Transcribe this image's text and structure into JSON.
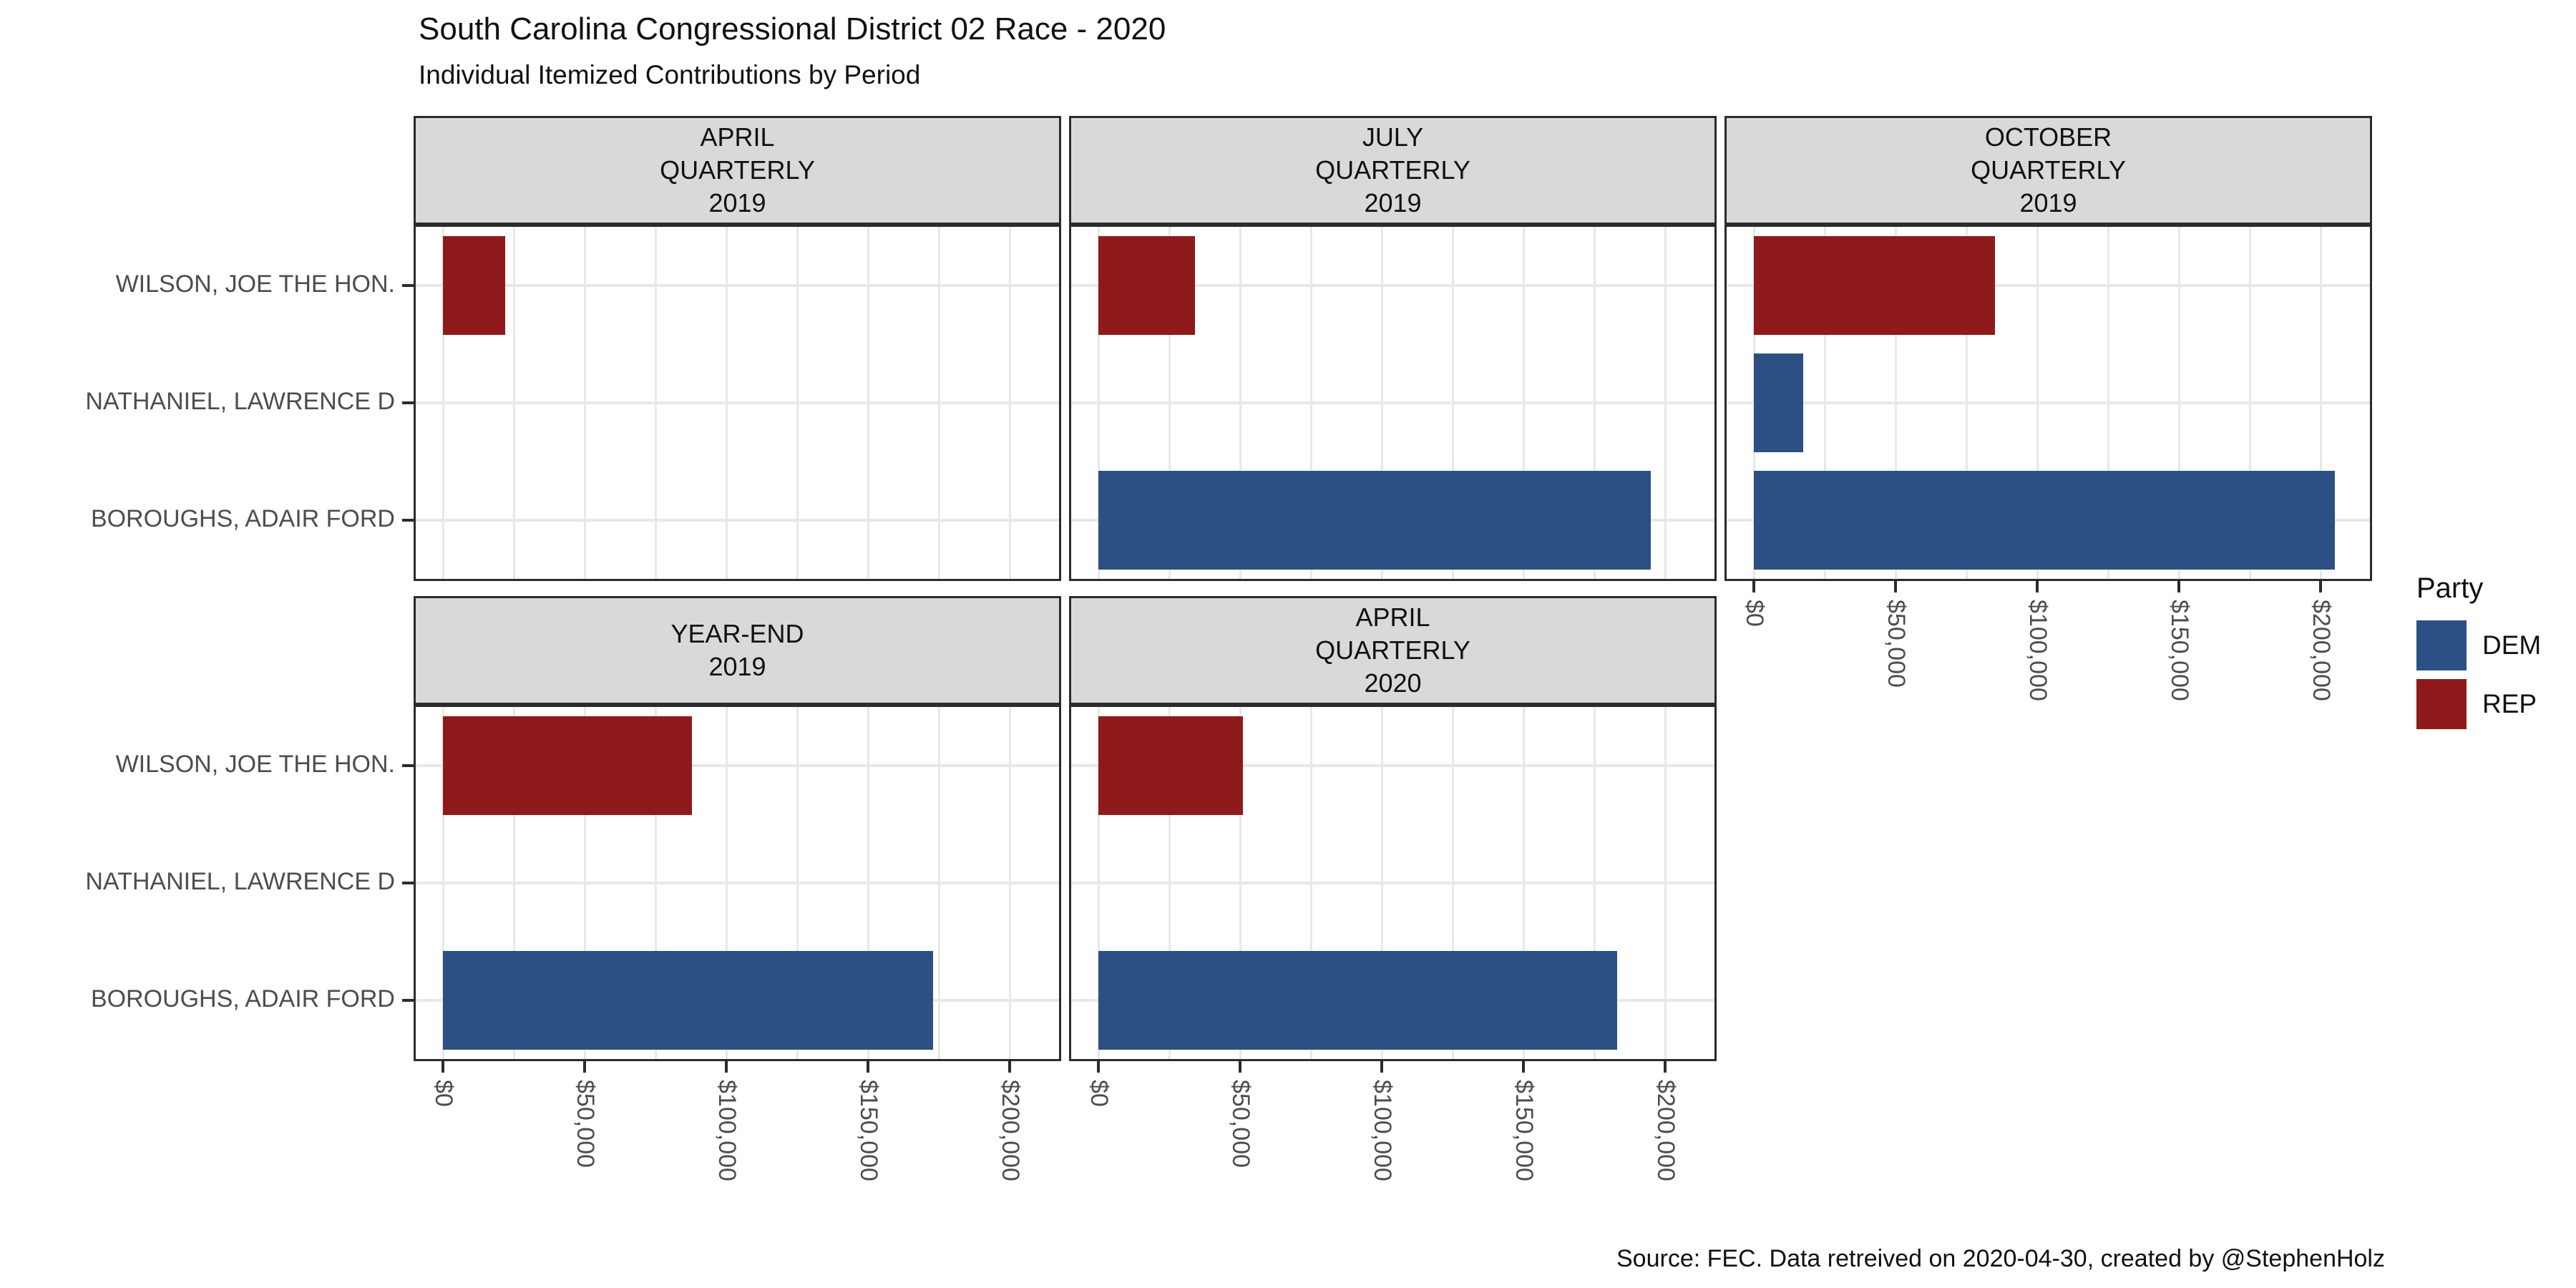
{
  "chart_data": {
    "type": "bar",
    "orientation": "horizontal",
    "title": "South Carolina Congressional District 02 Race - 2020",
    "subtitle": "Individual Itemized Contributions by Period",
    "caption": "Source: FEC. Data retreived on 2020-04-30, created by @StephenHolz",
    "categories": [
      "WILSON, JOE THE HON.",
      "NATHANIEL, LAWRENCE D",
      "BOROUGHS, ADAIR FORD"
    ],
    "x_axis": {
      "tick_labels": [
        "$0",
        "$50,000",
        "$100,000",
        "$150,000",
        "$200,000"
      ],
      "tick_values": [
        0,
        50000,
        100000,
        150000,
        200000
      ],
      "minor_step": 25000,
      "max_value": 216000,
      "grid": "major+minor"
    },
    "party_colors": {
      "DEM": "#2C5083",
      "REP": "#8E1A1C"
    },
    "legend": {
      "title": "Party",
      "position": "right",
      "entries": [
        {
          "label": "DEM",
          "party": "DEM"
        },
        {
          "label": "REP",
          "party": "REP"
        }
      ]
    },
    "facets": [
      {
        "label_lines": [
          "APRIL",
          "QUARTERLY",
          "2019"
        ],
        "row": 0,
        "col": 0,
        "show_x_axis": false,
        "show_y_axis": true,
        "bars": [
          {
            "candidate": "WILSON, JOE THE HON.",
            "party": "REP",
            "value": 22000
          }
        ]
      },
      {
        "label_lines": [
          "JULY",
          "QUARTERLY",
          "2019"
        ],
        "row": 0,
        "col": 1,
        "show_x_axis": false,
        "show_y_axis": false,
        "bars": [
          {
            "candidate": "WILSON, JOE THE HON.",
            "party": "REP",
            "value": 34000
          },
          {
            "candidate": "BOROUGHS, ADAIR FORD",
            "party": "DEM",
            "value": 195000
          }
        ]
      },
      {
        "label_lines": [
          "OCTOBER",
          "QUARTERLY",
          "2019"
        ],
        "row": 0,
        "col": 2,
        "show_x_axis": true,
        "show_y_axis": false,
        "bars": [
          {
            "candidate": "WILSON, JOE THE HON.",
            "party": "REP",
            "value": 85000
          },
          {
            "candidate": "NATHANIEL, LAWRENCE D",
            "party": "DEM",
            "value": 17500
          },
          {
            "candidate": "BOROUGHS, ADAIR FORD",
            "party": "DEM",
            "value": 205000
          }
        ]
      },
      {
        "label_lines": [
          "YEAR-END",
          "2019"
        ],
        "row": 1,
        "col": 0,
        "show_x_axis": true,
        "show_y_axis": true,
        "bars": [
          {
            "candidate": "WILSON, JOE THE HON.",
            "party": "REP",
            "value": 88000
          },
          {
            "candidate": "BOROUGHS, ADAIR FORD",
            "party": "DEM",
            "value": 173000
          }
        ]
      },
      {
        "label_lines": [
          "APRIL",
          "QUARTERLY",
          "2020"
        ],
        "row": 1,
        "col": 1,
        "show_x_axis": true,
        "show_y_axis": false,
        "bars": [
          {
            "candidate": "WILSON, JOE THE HON.",
            "party": "REP",
            "value": 51000
          },
          {
            "candidate": "BOROUGHS, ADAIR FORD",
            "party": "DEM",
            "value": 183000
          }
        ]
      }
    ],
    "style": {
      "strip_fill": "#D9D9D9",
      "border_color": "#2B2B2B",
      "grid_color": "#E8E8E8",
      "axis_text_color": "#4D4D4D"
    }
  }
}
